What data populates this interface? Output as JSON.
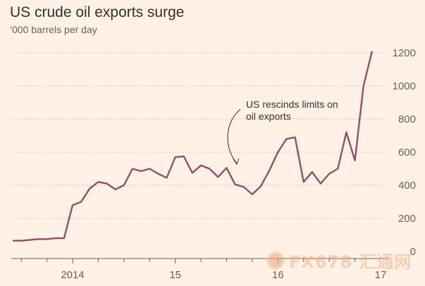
{
  "chart_data": {
    "type": "line",
    "title": "US crude oil exports surge",
    "subtitle": "’000 barrels per day",
    "x_ticks": [
      "2014",
      "15",
      "16",
      "17"
    ],
    "ylim": [
      0,
      1200
    ],
    "y_ticks": [
      0,
      200,
      400,
      600,
      800,
      1000,
      1200
    ],
    "y_tick_labels": [
      "0",
      "200",
      "400",
      "600",
      "800",
      "1000",
      "1200"
    ],
    "grid": true,
    "y_axis_side": "right",
    "series": [
      {
        "color": "#8f4f6b",
        "points": [
          [
            "2013-06",
            65
          ],
          [
            "2013-07",
            65
          ],
          [
            "2013-08",
            70
          ],
          [
            "2013-09",
            75
          ],
          [
            "2013-10",
            75
          ],
          [
            "2013-11",
            80
          ],
          [
            "2013-12",
            80
          ],
          [
            "2014-01",
            280
          ],
          [
            "2014-02",
            300
          ],
          [
            "2014-03",
            380
          ],
          [
            "2014-04",
            420
          ],
          [
            "2014-05",
            410
          ],
          [
            "2014-06",
            375
          ],
          [
            "2014-07",
            400
          ],
          [
            "2014-08",
            500
          ],
          [
            "2014-09",
            485
          ],
          [
            "2014-10",
            500
          ],
          [
            "2014-11",
            470
          ],
          [
            "2014-12",
            445
          ],
          [
            "2015-01",
            570
          ],
          [
            "2015-02",
            575
          ],
          [
            "2015-03",
            475
          ],
          [
            "2015-04",
            520
          ],
          [
            "2015-05",
            500
          ],
          [
            "2015-06",
            450
          ],
          [
            "2015-07",
            505
          ],
          [
            "2015-08",
            405
          ],
          [
            "2015-09",
            390
          ],
          [
            "2015-10",
            345
          ],
          [
            "2015-11",
            395
          ],
          [
            "2015-12",
            490
          ],
          [
            "2016-01",
            600
          ],
          [
            "2016-02",
            680
          ],
          [
            "2016-03",
            690
          ],
          [
            "2016-04",
            420
          ],
          [
            "2016-05",
            480
          ],
          [
            "2016-06",
            410
          ],
          [
            "2016-07",
            470
          ],
          [
            "2016-08",
            500
          ],
          [
            "2016-09",
            720
          ],
          [
            "2016-10",
            550
          ],
          [
            "2016-11",
            1000
          ],
          [
            "2016-12",
            1210
          ]
        ]
      }
    ],
    "annotations": [
      {
        "lines": [
          "US rescinds limits on",
          "oil exports"
        ],
        "date": "2015-12"
      }
    ]
  },
  "watermark": {
    "text": "FX678 汇通网"
  }
}
